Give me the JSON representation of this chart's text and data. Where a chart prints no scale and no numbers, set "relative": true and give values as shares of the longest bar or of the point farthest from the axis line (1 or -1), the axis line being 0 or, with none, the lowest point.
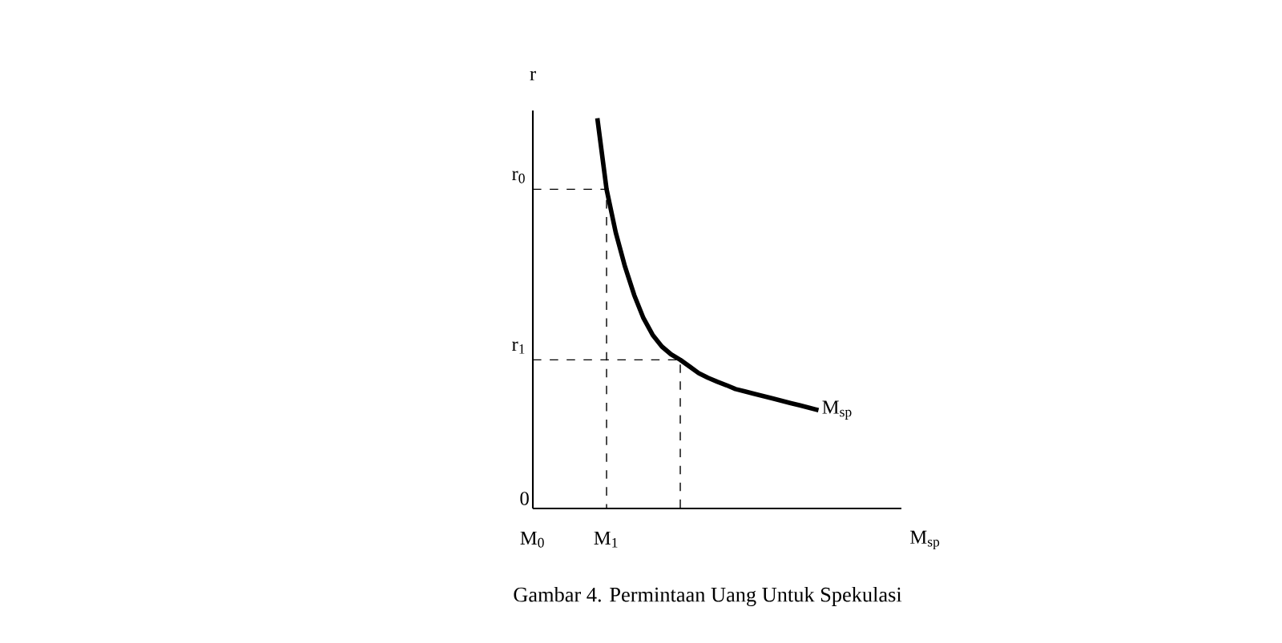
{
  "chart_data": {
    "type": "line",
    "relative": true,
    "title": "Gambar 4. Permintaan Uang Untuk Spekulasi",
    "xlabel": "M$_{sp}$",
    "ylabel": "r",
    "categories": [
      "M$_{0}$",
      null,
      null,
      null,
      null,
      null,
      null,
      null,
      "M$_{1}$",
      null,
      null,
      null,
      null,
      null,
      null,
      null,
      null,
      null,
      null,
      null,
      null,
      null,
      null,
      null,
      null,
      null,
      null,
      null,
      null,
      null,
      null,
      null,
      null,
      null,
      null,
      null,
      null,
      null,
      null,
      null,
      null
    ],
    "series": [
      {
        "name": "M$_{sp}$",
        "color": "#000000",
        "values": [
          null,
          null,
          null,
          null,
          null,
          null,
          null,
          1,
          0.818,
          0.707,
          0.62,
          0.547,
          0.488,
          0.445,
          0.415,
          0.395,
          0.381,
          0.364,
          0.347,
          0.335,
          0.325,
          0.316,
          0.306,
          0.3,
          0.294,
          0.288,
          0.282,
          0.276,
          0.27,
          0.264,
          0.258,
          0.252,
          null,
          null,
          null,
          null,
          null,
          null,
          null,
          null,
          null
        ]
      }
    ],
    "ref_lines": [
      {
        "axis": "y",
        "value": 0.818,
        "label": "r$_{0}$",
        "color": "#000000",
        "line_style": "dashed"
      },
      {
        "axis": "y",
        "value": 0.381,
        "label": "r$_{1}$",
        "color": "#000000",
        "line_style": "dashed"
      }
    ],
    "annotations": [
      "0"
    ],
    "marker": "none",
    "line_style": "solid"
  }
}
